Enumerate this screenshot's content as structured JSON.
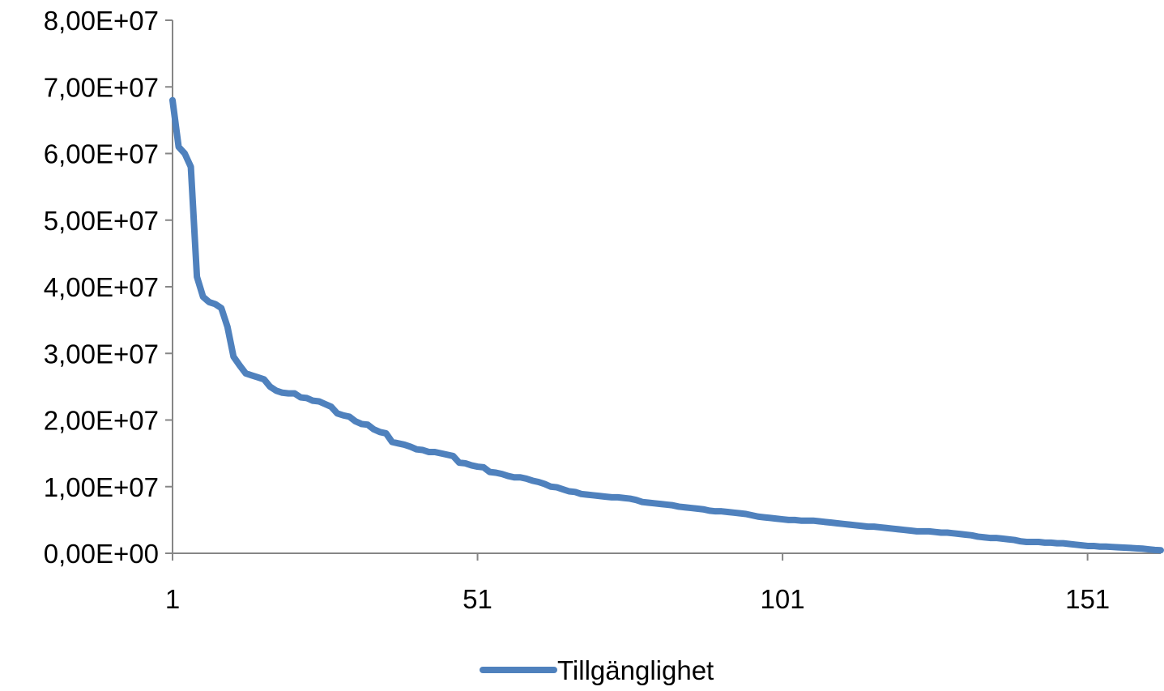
{
  "chart_data": {
    "type": "line",
    "title": "",
    "xlabel": "",
    "ylabel": "",
    "x_range": [
      1,
      163
    ],
    "y_range": [
      0,
      80000000
    ],
    "x_ticks": [
      1,
      51,
      101,
      151
    ],
    "x_tick_labels": [
      "1",
      "51",
      "101",
      "151"
    ],
    "y_ticks": [
      0,
      10000000,
      20000000,
      30000000,
      40000000,
      50000000,
      60000000,
      70000000,
      80000000
    ],
    "y_tick_labels": [
      "0,00E+00",
      "1,00E+07",
      "2,00E+07",
      "3,00E+07",
      "4,00E+07",
      "5,00E+07",
      "6,00E+07",
      "7,00E+07",
      "8,00E+07"
    ],
    "grid": false,
    "legend_position": "bottom",
    "series": [
      {
        "name": "Tillgänglighet",
        "color": "#4F81BD",
        "points": [
          [
            1,
            68000000
          ],
          [
            2,
            61000000
          ],
          [
            3,
            60000000
          ],
          [
            4,
            58000000
          ],
          [
            5,
            41500000
          ],
          [
            6,
            38500000
          ],
          [
            7,
            37700000
          ],
          [
            8,
            37400000
          ],
          [
            9,
            36800000
          ],
          [
            10,
            34000000
          ],
          [
            11,
            29500000
          ],
          [
            12,
            28200000
          ],
          [
            13,
            27000000
          ],
          [
            14,
            26700000
          ],
          [
            15,
            26400000
          ],
          [
            16,
            26100000
          ],
          [
            17,
            25000000
          ],
          [
            18,
            24400000
          ],
          [
            19,
            24100000
          ],
          [
            20,
            24000000
          ],
          [
            21,
            24000000
          ],
          [
            22,
            23400000
          ],
          [
            23,
            23300000
          ],
          [
            24,
            22900000
          ],
          [
            25,
            22800000
          ],
          [
            26,
            22400000
          ],
          [
            27,
            22000000
          ],
          [
            28,
            21000000
          ],
          [
            29,
            20700000
          ],
          [
            30,
            20500000
          ],
          [
            31,
            19800000
          ],
          [
            32,
            19400000
          ],
          [
            33,
            19300000
          ],
          [
            34,
            18600000
          ],
          [
            35,
            18200000
          ],
          [
            36,
            18000000
          ],
          [
            37,
            16700000
          ],
          [
            38,
            16500000
          ],
          [
            39,
            16300000
          ],
          [
            40,
            16000000
          ],
          [
            41,
            15600000
          ],
          [
            42,
            15500000
          ],
          [
            43,
            15200000
          ],
          [
            44,
            15200000
          ],
          [
            45,
            15000000
          ],
          [
            46,
            14800000
          ],
          [
            47,
            14600000
          ],
          [
            48,
            13600000
          ],
          [
            49,
            13500000
          ],
          [
            50,
            13200000
          ],
          [
            51,
            13000000
          ],
          [
            52,
            12900000
          ],
          [
            53,
            12200000
          ],
          [
            54,
            12100000
          ],
          [
            55,
            11900000
          ],
          [
            56,
            11600000
          ],
          [
            57,
            11400000
          ],
          [
            58,
            11400000
          ],
          [
            59,
            11200000
          ],
          [
            60,
            10900000
          ],
          [
            61,
            10700000
          ],
          [
            62,
            10400000
          ],
          [
            63,
            10000000
          ],
          [
            64,
            9900000
          ],
          [
            65,
            9600000
          ],
          [
            66,
            9300000
          ],
          [
            67,
            9200000
          ],
          [
            68,
            8900000
          ],
          [
            69,
            8800000
          ],
          [
            70,
            8700000
          ],
          [
            71,
            8600000
          ],
          [
            72,
            8500000
          ],
          [
            73,
            8400000
          ],
          [
            74,
            8400000
          ],
          [
            75,
            8300000
          ],
          [
            76,
            8200000
          ],
          [
            77,
            8000000
          ],
          [
            78,
            7700000
          ],
          [
            79,
            7600000
          ],
          [
            80,
            7500000
          ],
          [
            81,
            7400000
          ],
          [
            82,
            7300000
          ],
          [
            83,
            7200000
          ],
          [
            84,
            7000000
          ],
          [
            85,
            6900000
          ],
          [
            86,
            6800000
          ],
          [
            87,
            6700000
          ],
          [
            88,
            6600000
          ],
          [
            89,
            6400000
          ],
          [
            90,
            6300000
          ],
          [
            91,
            6300000
          ],
          [
            92,
            6200000
          ],
          [
            93,
            6100000
          ],
          [
            94,
            6000000
          ],
          [
            95,
            5900000
          ],
          [
            96,
            5700000
          ],
          [
            97,
            5500000
          ],
          [
            98,
            5400000
          ],
          [
            99,
            5300000
          ],
          [
            100,
            5200000
          ],
          [
            101,
            5100000
          ],
          [
            102,
            5000000
          ],
          [
            103,
            5000000
          ],
          [
            104,
            4900000
          ],
          [
            105,
            4900000
          ],
          [
            106,
            4900000
          ],
          [
            107,
            4800000
          ],
          [
            108,
            4700000
          ],
          [
            109,
            4600000
          ],
          [
            110,
            4500000
          ],
          [
            111,
            4400000
          ],
          [
            112,
            4300000
          ],
          [
            113,
            4200000
          ],
          [
            114,
            4100000
          ],
          [
            115,
            4000000
          ],
          [
            116,
            4000000
          ],
          [
            117,
            3900000
          ],
          [
            118,
            3800000
          ],
          [
            119,
            3700000
          ],
          [
            120,
            3600000
          ],
          [
            121,
            3500000
          ],
          [
            122,
            3400000
          ],
          [
            123,
            3300000
          ],
          [
            124,
            3300000
          ],
          [
            125,
            3300000
          ],
          [
            126,
            3200000
          ],
          [
            127,
            3100000
          ],
          [
            128,
            3100000
          ],
          [
            129,
            3000000
          ],
          [
            130,
            2900000
          ],
          [
            131,
            2800000
          ],
          [
            132,
            2700000
          ],
          [
            133,
            2500000
          ],
          [
            134,
            2400000
          ],
          [
            135,
            2300000
          ],
          [
            136,
            2300000
          ],
          [
            137,
            2200000
          ],
          [
            138,
            2100000
          ],
          [
            139,
            2000000
          ],
          [
            140,
            1800000
          ],
          [
            141,
            1700000
          ],
          [
            142,
            1700000
          ],
          [
            143,
            1700000
          ],
          [
            144,
            1600000
          ],
          [
            145,
            1600000
          ],
          [
            146,
            1500000
          ],
          [
            147,
            1500000
          ],
          [
            148,
            1400000
          ],
          [
            149,
            1300000
          ],
          [
            150,
            1200000
          ],
          [
            151,
            1100000
          ],
          [
            152,
            1100000
          ],
          [
            153,
            1000000
          ],
          [
            154,
            1000000
          ],
          [
            155,
            950000
          ],
          [
            156,
            900000
          ],
          [
            157,
            850000
          ],
          [
            158,
            800000
          ],
          [
            159,
            750000
          ],
          [
            160,
            700000
          ],
          [
            161,
            600000
          ],
          [
            162,
            500000
          ],
          [
            163,
            450000
          ]
        ]
      }
    ]
  }
}
